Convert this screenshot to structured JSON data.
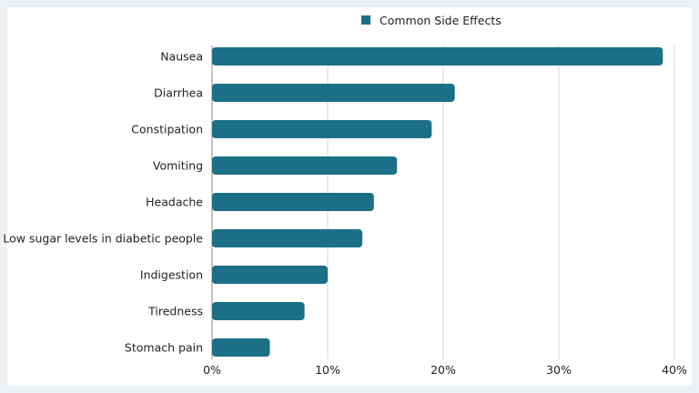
{
  "chart_data": {
    "type": "bar",
    "orientation": "horizontal",
    "categories": [
      "Nausea",
      "Diarrhea",
      "Constipation",
      "Vomiting",
      "Headache",
      "Low sugar levels in diabetic people",
      "Indigestion",
      "Tiredness",
      "Stomach pain"
    ],
    "series": [
      {
        "name": "Common Side Effects",
        "values": [
          39,
          21,
          19,
          16,
          14,
          13,
          10,
          8,
          5
        ],
        "color": "#1b6f87"
      }
    ],
    "xlim": [
      0,
      40
    ],
    "xticks": [
      0,
      10,
      20,
      30,
      40
    ],
    "tick_suffix": "%",
    "grid": true,
    "legend_position": "top"
  }
}
